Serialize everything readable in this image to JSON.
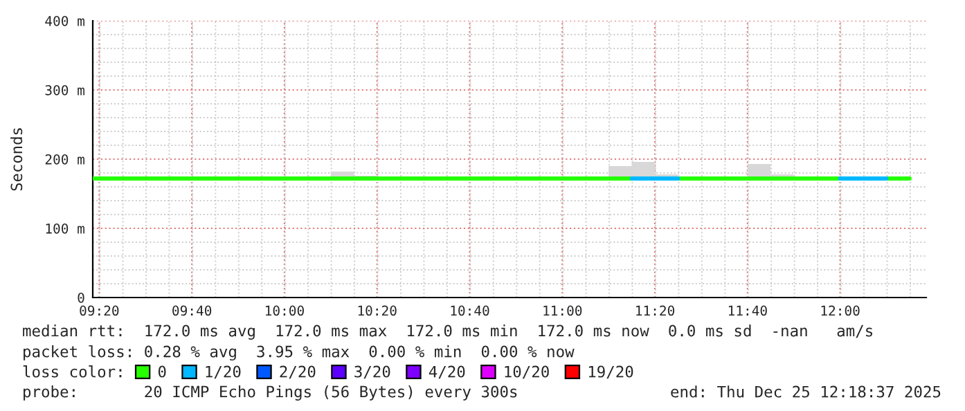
{
  "chart_data": {
    "type": "line",
    "ylabel": "Seconds",
    "xlim": [
      9.31,
      12.31
    ],
    "xticks": [
      {
        "value": 9.3333,
        "label": "09:20"
      },
      {
        "value": 9.6667,
        "label": "09:40"
      },
      {
        "value": 10,
        "label": "10:00"
      },
      {
        "value": 10.3333,
        "label": "10:20"
      },
      {
        "value": 10.6667,
        "label": "10:40"
      },
      {
        "value": 11,
        "label": "11:00"
      },
      {
        "value": 11.3333,
        "label": "11:20"
      },
      {
        "value": 11.6667,
        "label": "11:40"
      },
      {
        "value": 12,
        "label": "12:00"
      }
    ],
    "ylim": [
      0,
      400
    ],
    "yticks": [
      0,
      {
        "value": 100,
        "label": "100 m"
      },
      {
        "value": 200,
        "label": "200 m"
      },
      {
        "value": 300,
        "label": "300 m"
      },
      {
        "value": 400,
        "label": "400 m"
      }
    ],
    "grid": true,
    "legend": "bottom",
    "legend_title": "loss color:",
    "series": [
      {
        "name": "0",
        "color": "#26ff00",
        "x": [
          9.31,
          10.1667,
          10.25,
          10.25,
          10.3333,
          10.75,
          11.1667,
          11.25,
          11.25,
          11.3333,
          11.3333,
          11.4167,
          11.5,
          11.6667,
          11.75,
          11.75,
          11.8333,
          12.0,
          12.0833,
          12.1667,
          12.25
        ],
        "values": [
          172,
          172,
          172,
          172,
          172,
          172,
          172,
          172,
          172,
          null,
          null,
          172,
          172,
          172,
          172,
          172,
          172,
          172,
          null,
          172,
          172
        ],
        "lower": [
          null,
          172,
          172,
          172,
          172,
          null,
          172,
          172,
          172,
          172,
          172,
          172,
          null,
          172,
          172,
          172,
          172,
          null,
          null,
          null,
          null
        ],
        "upper": [
          null,
          182,
          182,
          176,
          176,
          null,
          190,
          190,
          196,
          196,
          178,
          178,
          null,
          193,
          193,
          178,
          178,
          null,
          null,
          null,
          null
        ]
      },
      {
        "name": "1/20",
        "color": "#00b8ff",
        "x": [
          11.25,
          11.4167,
          11.7,
          12.0,
          12.1667
        ],
        "values": [
          172,
          172,
          null,
          172,
          172
        ]
      },
      {
        "name": "2/20",
        "color": "#0059ff"
      },
      {
        "name": "3/20",
        "color": "#5e00ff"
      },
      {
        "name": "4/20",
        "color": "#7e00ff"
      },
      {
        "name": "10/20",
        "color": "#dd00ff"
      },
      {
        "name": "19/20",
        "color": "#ff0000"
      }
    ],
    "annotations": [
      "median rtt:  172.0 ms avg  172.0 ms max  172.0 ms min  172.0 ms now  0.0 ms sd  -nan   am/s",
      "packet loss: 0.28 % avg  3.95 % max  0.00 % min  0.00 % now",
      "probe:       20 ICMP Echo Pings (56 Bytes) every 300s",
      "end: Thu Dec 25 12:18:37 2025"
    ]
  }
}
